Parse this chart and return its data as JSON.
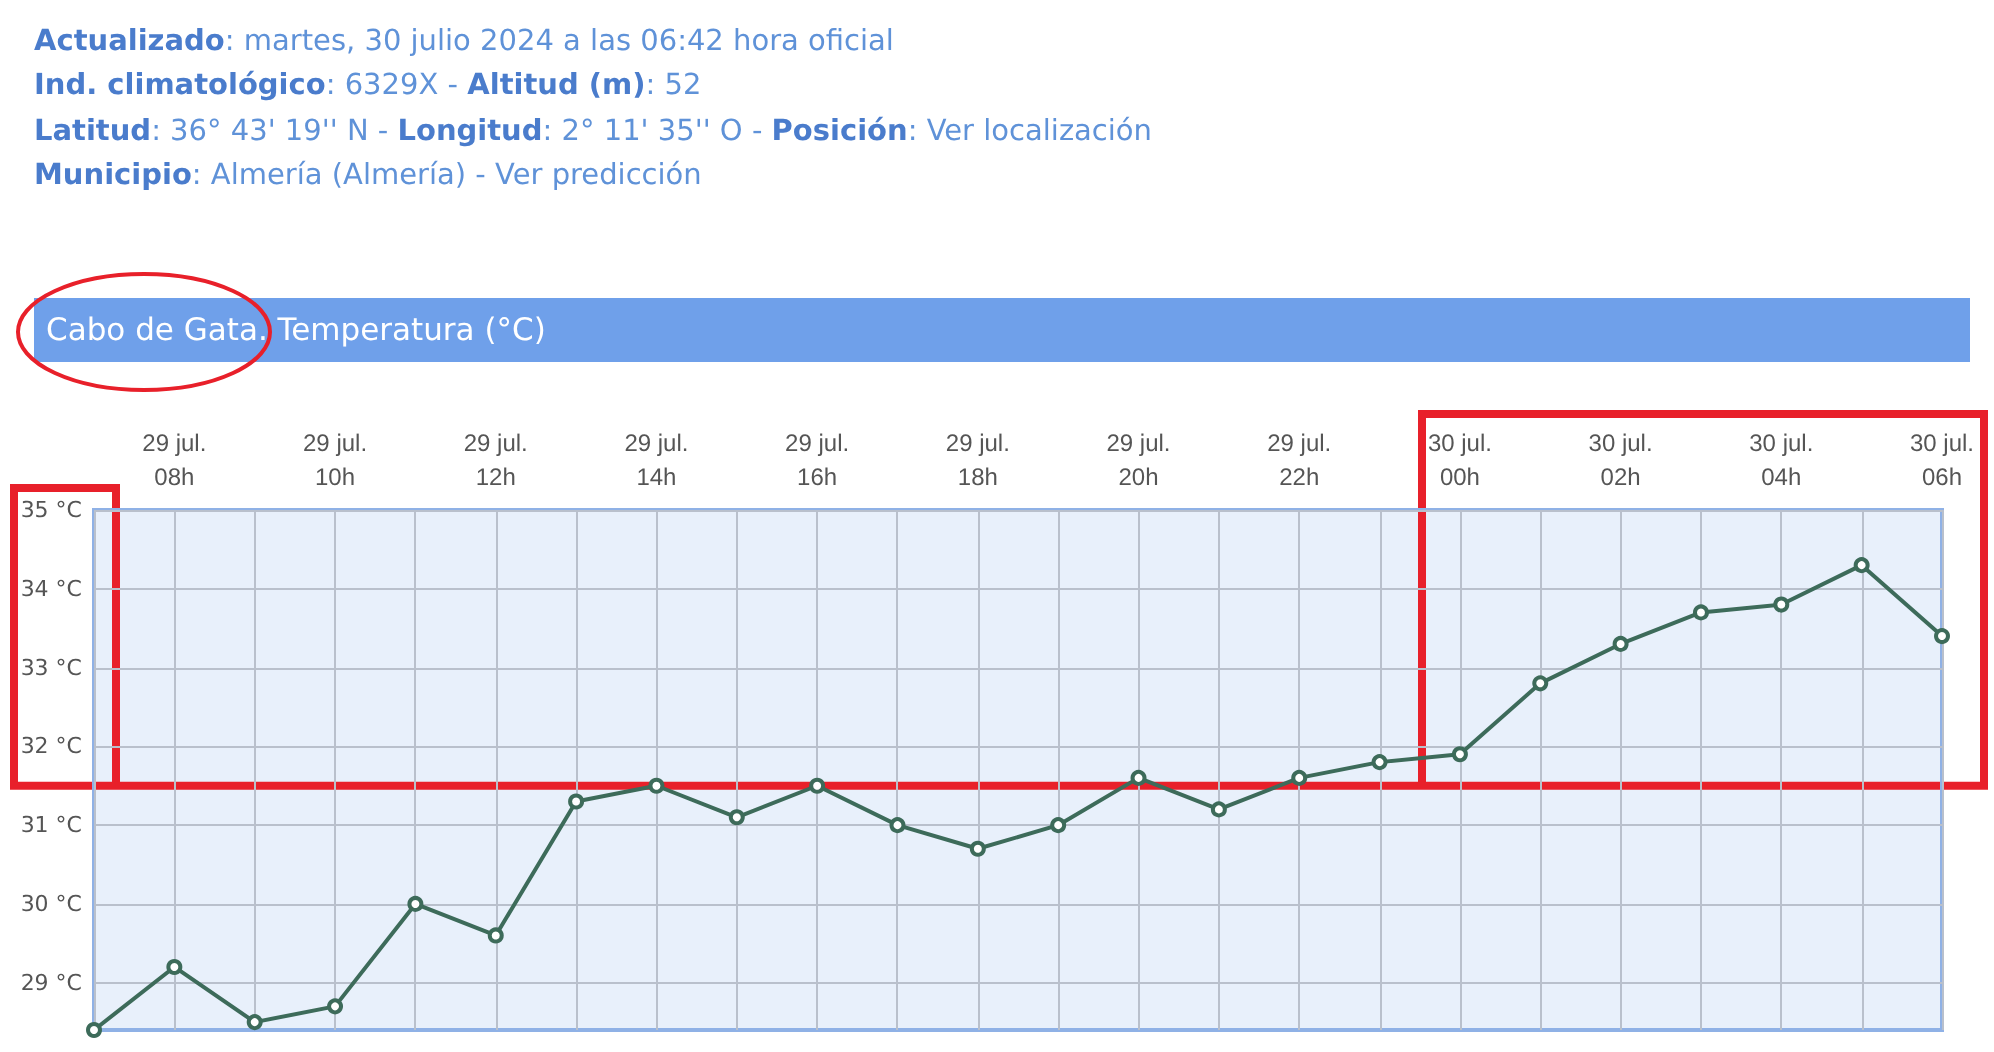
{
  "chart_data": {
    "type": "line",
    "title": "Cabo de Gata. Temperatura (°C)",
    "annotations": [
      "Actualizado: martes, 30 julio 2024 a las 06:42 hora oficial",
      "Ind. climatológico: 6329X - Altitud (m): 52",
      "Latitud: 36° 43' 19'' N - Longitud: 2° 11' 35'' O - Posición: Ver localización",
      "Municipio: Almería (Almería) - Ver predicción"
    ],
    "categories": [
      null,
      "29 jul.\n08h",
      null,
      "29 jul.\n10h",
      null,
      "29 jul.\n12h",
      null,
      "29 jul.\n14h",
      null,
      "29 jul.\n16h",
      null,
      "29 jul.\n18h",
      null,
      "29 jul.\n20h",
      null,
      "29 jul.\n22h",
      null,
      "30 jul.\n00h",
      null,
      "30 jul.\n02h",
      null,
      "30 jul.\n04h",
      null,
      "30 jul.\n06h"
    ],
    "series": [
      {
        "color": "#3d6b5a",
        "values": [
          28.4,
          29.2,
          28.5,
          28.7,
          30.0,
          29.6,
          31.3,
          31.5,
          31.1,
          31.5,
          31.0,
          30.7,
          31.0,
          31.6,
          31.2,
          31.6,
          31.8,
          31.9,
          32.8,
          33.3,
          33.7,
          33.8,
          34.3,
          33.4
        ]
      }
    ],
    "ylim": [
      28.4,
      35
    ],
    "yticks": [
      {
        "value": 29,
        "label": "29 °C"
      },
      {
        "value": 30,
        "label": "30 °C"
      },
      {
        "value": 31,
        "label": "31 °C"
      },
      {
        "value": 32,
        "label": "32 °C"
      },
      {
        "value": 33,
        "label": "33 °C"
      },
      {
        "value": 34,
        "label": "34 °C"
      },
      {
        "value": 35,
        "label": "35 °C"
      }
    ],
    "ref_lines": [
      {
        "axis": "y",
        "value": 31.5,
        "color": "#e8202a"
      }
    ],
    "grid": true,
    "marker": "circle",
    "line_style": "solid"
  }
}
